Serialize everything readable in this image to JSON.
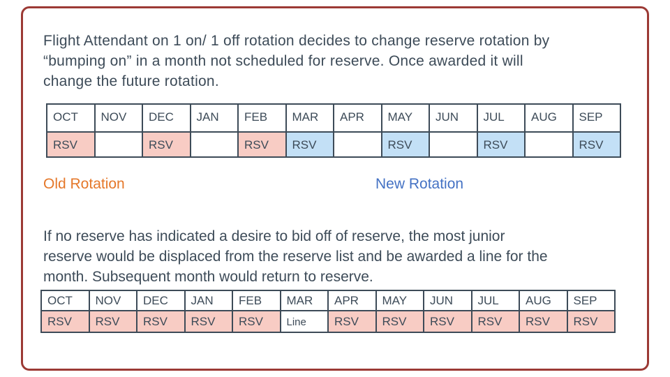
{
  "slide": {
    "background": "#ffffff",
    "frame_color": "#9c3a35",
    "text_color": "#3d4b58"
  },
  "intro": {
    "lines": [
      "Flight Attendant on 1 on/ 1 off rotation decides to change reserve rotation by",
      "“bumping on” in a month not scheduled for reserve.  Once awarded it will",
      "change the future rotation."
    ]
  },
  "body2": {
    "lines": [
      "If no reserve has indicated a desire to bid off of reserve, the most junior",
      "reserve would be displaced from the reserve list and be awarded a line for the",
      "month. Subsequent month would return to reserve."
    ]
  },
  "legend": {
    "old": {
      "label": "Old Rotation",
      "color": "#e5782a"
    },
    "new": {
      "label": "New Rotation",
      "color": "#4472c4"
    }
  },
  "colors": {
    "old_reserve_fill": "#f8ccc4",
    "new_reserve_fill": "#c3e0f6",
    "grid": "#3d4b58"
  },
  "tables": [
    {
      "name": "rotation-change-table",
      "months": [
        "OCT",
        "NOV",
        "DEC",
        "JAN",
        "FEB",
        "MAR",
        "APR",
        "MAY",
        "JUN",
        "JUL",
        "AUG",
        "SEP"
      ],
      "cells": [
        {
          "text": "RSV",
          "shade": "pink"
        },
        {
          "text": "",
          "shade": "white"
        },
        {
          "text": "RSV",
          "shade": "pink"
        },
        {
          "text": "",
          "shade": "white"
        },
        {
          "text": "RSV",
          "shade": "pink"
        },
        {
          "text": "RSV",
          "shade": "blue"
        },
        {
          "text": "",
          "shade": "white"
        },
        {
          "text": "RSV",
          "shade": "blue"
        },
        {
          "text": "",
          "shade": "white"
        },
        {
          "text": "RSV",
          "shade": "blue"
        },
        {
          "text": "",
          "shade": "white"
        },
        {
          "text": "RSV",
          "shade": "blue"
        }
      ]
    },
    {
      "name": "displacement-table",
      "months": [
        "OCT",
        "NOV",
        "DEC",
        "JAN",
        "FEB",
        "MAR",
        "APR",
        "MAY",
        "JUN",
        "JUL",
        "AUG",
        "SEP"
      ],
      "cells": [
        {
          "text": "RSV",
          "shade": "pink"
        },
        {
          "text": "RSV",
          "shade": "pink"
        },
        {
          "text": "RSV",
          "shade": "pink"
        },
        {
          "text": "RSV",
          "shade": "pink"
        },
        {
          "text": "RSV",
          "shade": "pink"
        },
        {
          "text": "Line",
          "shade": "white"
        },
        {
          "text": "RSV",
          "shade": "pink"
        },
        {
          "text": "RSV",
          "shade": "pink"
        },
        {
          "text": "RSV",
          "shade": "pink"
        },
        {
          "text": "RSV",
          "shade": "pink"
        },
        {
          "text": "RSV",
          "shade": "pink"
        },
        {
          "text": "RSV",
          "shade": "pink"
        }
      ]
    }
  ]
}
